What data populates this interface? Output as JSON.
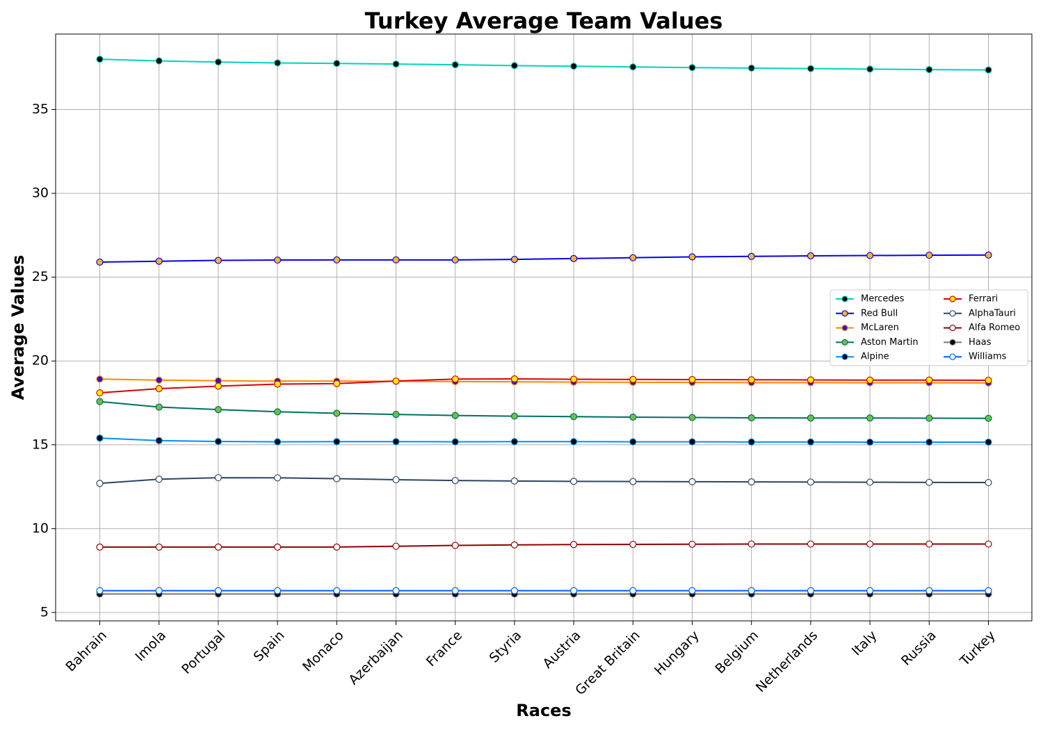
{
  "chart_data": {
    "type": "line",
    "title": "Turkey Average Team Values",
    "xlabel": "Races",
    "ylabel": "Average Values",
    "categories": [
      "Bahrain",
      "Imola",
      "Portugal",
      "Spain",
      "Monaco",
      "Azerbaijan",
      "France",
      "Styria",
      "Austria",
      "Great Britain",
      "Hungary",
      "Belgium",
      "Netherlands",
      "Italy",
      "Russia",
      "Turkey"
    ],
    "ylim": [
      4.5,
      39.5
    ],
    "yticks": [
      5,
      10,
      15,
      20,
      25,
      30,
      35
    ],
    "grid": true,
    "legend_position": "center-right",
    "legend_columns": 2,
    "series": [
      {
        "name": "Mercedes",
        "line_color": "#00d2be",
        "marker_fill": "#000000",
        "marker_edge": "#00d2be",
        "values": [
          38.0,
          37.9,
          37.83,
          37.78,
          37.75,
          37.71,
          37.67,
          37.62,
          37.58,
          37.54,
          37.5,
          37.47,
          37.44,
          37.41,
          37.38,
          37.36
        ]
      },
      {
        "name": "Red Bull",
        "line_color": "#0600ef",
        "marker_fill": "#f5b52a",
        "marker_edge": "#0600ef",
        "values": [
          25.9,
          25.95,
          26.0,
          26.02,
          26.03,
          26.03,
          26.03,
          26.06,
          26.11,
          26.16,
          26.21,
          26.24,
          26.27,
          26.29,
          26.31,
          26.32
        ]
      },
      {
        "name": "McLaren",
        "line_color": "#ff8700",
        "marker_fill": "#2a14d6",
        "marker_edge": "#ff8700",
        "values": [
          18.92,
          18.86,
          18.82,
          18.8,
          18.8,
          18.79,
          18.77,
          18.76,
          18.74,
          18.73,
          18.72,
          18.71,
          18.71,
          18.7,
          18.7,
          18.69
        ]
      },
      {
        "name": "Aston Martin",
        "line_color": "#006f62",
        "marker_fill": "#6cc04a",
        "marker_edge": "#006f62",
        "values": [
          17.58,
          17.25,
          17.1,
          16.97,
          16.88,
          16.81,
          16.75,
          16.71,
          16.68,
          16.65,
          16.63,
          16.61,
          16.6,
          16.6,
          16.59,
          16.58
        ]
      },
      {
        "name": "Alpine",
        "line_color": "#0090ff",
        "marker_fill": "#000000",
        "marker_edge": "#0090ff",
        "values": [
          15.4,
          15.25,
          15.2,
          15.18,
          15.19,
          15.19,
          15.18,
          15.19,
          15.19,
          15.18,
          15.18,
          15.17,
          15.17,
          15.16,
          15.16,
          15.16
        ]
      },
      {
        "name": "Ferrari",
        "line_color": "#dc0000",
        "marker_fill": "#fff200",
        "marker_edge": "#dc0000",
        "values": [
          18.1,
          18.35,
          18.5,
          18.62,
          18.65,
          18.8,
          18.92,
          18.93,
          18.91,
          18.9,
          18.89,
          18.88,
          18.87,
          18.86,
          18.86,
          18.85
        ]
      },
      {
        "name": "AlphaTauri",
        "line_color": "#2b4562",
        "marker_fill": "#ffffff",
        "marker_edge": "#2b4562",
        "values": [
          12.7,
          12.95,
          13.04,
          13.03,
          12.98,
          12.92,
          12.87,
          12.84,
          12.82,
          12.81,
          12.8,
          12.79,
          12.78,
          12.77,
          12.76,
          12.75
        ]
      },
      {
        "name": "Alfa Romeo",
        "line_color": "#900000",
        "marker_fill": "#ffffff",
        "marker_edge": "#900000",
        "values": [
          8.9,
          8.9,
          8.9,
          8.9,
          8.9,
          8.95,
          9.0,
          9.03,
          9.05,
          9.06,
          9.07,
          9.08,
          9.08,
          9.08,
          9.08,
          9.08
        ]
      },
      {
        "name": "Haas",
        "line_color": "#787878",
        "marker_fill": "#000000",
        "marker_edge": "#787878",
        "values": [
          6.1,
          6.1,
          6.1,
          6.1,
          6.1,
          6.1,
          6.1,
          6.1,
          6.1,
          6.1,
          6.1,
          6.1,
          6.1,
          6.1,
          6.1,
          6.1
        ]
      },
      {
        "name": "Williams",
        "line_color": "#005aff",
        "marker_fill": "#ffffff",
        "marker_edge": "#005aff",
        "values": [
          6.3,
          6.3,
          6.3,
          6.3,
          6.3,
          6.3,
          6.3,
          6.3,
          6.3,
          6.3,
          6.3,
          6.3,
          6.3,
          6.3,
          6.3,
          6.3
        ]
      }
    ]
  }
}
